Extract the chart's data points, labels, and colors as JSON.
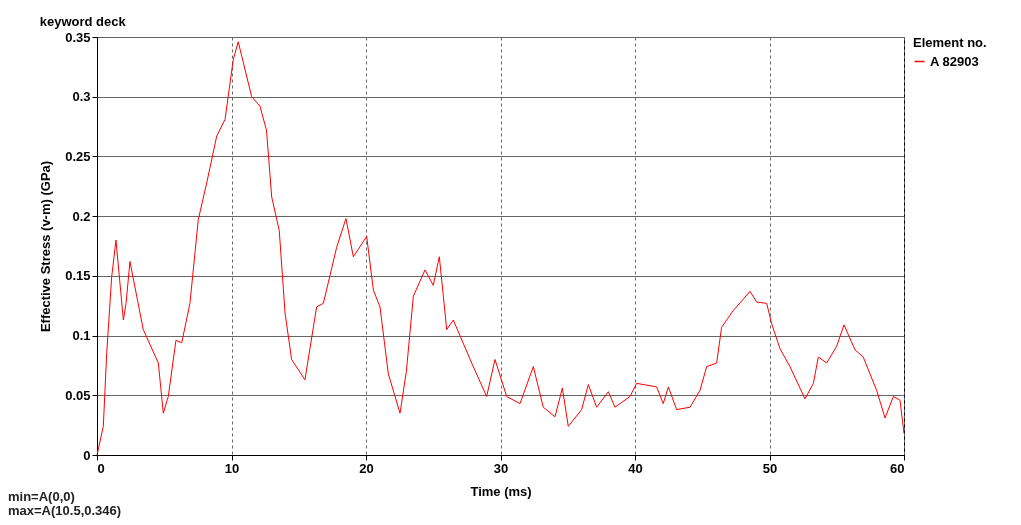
{
  "chart_data": {
    "type": "line",
    "title": "keyword deck",
    "xlabel": "Time (ms)",
    "ylabel": "Effective Stress (v-m) (GPa)",
    "legend_title": "Element no.",
    "legend": "top right",
    "grid": true,
    "marker": "none",
    "line_style": "solid",
    "xlim": [
      0,
      60
    ],
    "xticks": [
      0,
      10,
      20,
      30,
      40,
      50,
      60
    ],
    "ylim": [
      0,
      0.35
    ],
    "yticks": [
      0,
      0.05,
      0.1,
      0.15,
      0.2,
      0.25,
      0.3,
      0.35
    ],
    "annotations": [
      "min=A(0,0)",
      "max=A(10.5,0.346)"
    ],
    "series": [
      {
        "name": "A 82903",
        "color": "#ff0000",
        "x": [
          0,
          0.47,
          0.72,
          1.09,
          1.41,
          1.96,
          2.16,
          2.45,
          3.44,
          4.56,
          4.93,
          5.3,
          5.87,
          6.3,
          6.91,
          7.53,
          8.16,
          8.9,
          9.52,
          10.13,
          10.5,
          10.76,
          11.5,
          12.12,
          12.6,
          12.99,
          13.55,
          13.98,
          14.47,
          15.46,
          16.33,
          16.83,
          17.82,
          18.51,
          19.06,
          20.05,
          20.55,
          21.04,
          21.66,
          22.53,
          23.0,
          23.52,
          24.39,
          25.0,
          25.45,
          25.75,
          26.0,
          26.49,
          27.86,
          28.97,
          29.59,
          30.46,
          31.45,
          32.44,
          33.18,
          34.05,
          34.6,
          35.04,
          36.03,
          36.53,
          37.15,
          38.02,
          38.51,
          39.63,
          40.12,
          41.61,
          42.1,
          42.48,
          43.1,
          44.09,
          44.83,
          45.33,
          46.07,
          46.44,
          47.31,
          48.55,
          49.05,
          49.79,
          50.16,
          50.78,
          51.52,
          52.64,
          53.26,
          53.63,
          54.25,
          54.99,
          55.54,
          56.36,
          56.97,
          57.97,
          58.59,
          59.21,
          59.7,
          60
        ],
        "values": [
          0,
          0.024,
          0.085,
          0.149,
          0.18,
          0.113,
          0.127,
          0.162,
          0.105,
          0.077,
          0.035,
          0.049,
          0.096,
          0.094,
          0.127,
          0.197,
          0.228,
          0.267,
          0.281,
          0.331,
          0.346,
          0.334,
          0.3,
          0.292,
          0.272,
          0.216,
          0.188,
          0.119,
          0.08,
          0.063,
          0.124,
          0.127,
          0.174,
          0.198,
          0.166,
          0.183,
          0.138,
          0.124,
          0.068,
          0.035,
          0.07,
          0.133,
          0.155,
          0.142,
          0.166,
          0.133,
          0.105,
          0.113,
          0.077,
          0.049,
          0.08,
          0.049,
          0.043,
          0.074,
          0.04,
          0.032,
          0.056,
          0.024,
          0.038,
          0.059,
          0.04,
          0.053,
          0.04,
          0.049,
          0.06,
          0.057,
          0.043,
          0.057,
          0.038,
          0.04,
          0.054,
          0.074,
          0.077,
          0.107,
          0.121,
          0.137,
          0.128,
          0.127,
          0.11,
          0.089,
          0.074,
          0.047,
          0.06,
          0.082,
          0.077,
          0.091,
          0.109,
          0.088,
          0.082,
          0.054,
          0.031,
          0.049,
          0.046,
          0.018
        ]
      }
    ]
  }
}
